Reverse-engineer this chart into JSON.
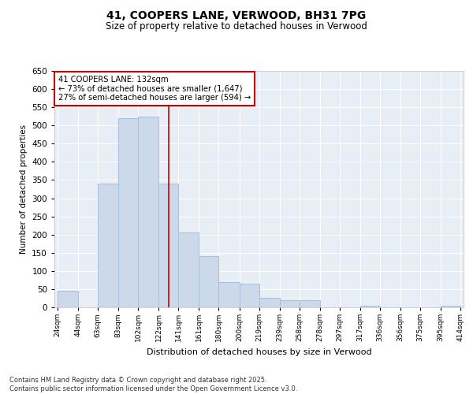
{
  "title_line1": "41, COOPERS LANE, VERWOOD, BH31 7PG",
  "title_line2": "Size of property relative to detached houses in Verwood",
  "xlabel": "Distribution of detached houses by size in Verwood",
  "ylabel": "Number of detached properties",
  "bar_color": "#ccd9ea",
  "bar_edge_color": "#a8c0d8",
  "background_color": "#e8eef5",
  "grid_color": "#ffffff",
  "bins_left": [
    24,
    44,
    63,
    83,
    102,
    122,
    141,
    161,
    180,
    200,
    219,
    239,
    258,
    278,
    297,
    317,
    336,
    356,
    375,
    395
  ],
  "bins_right": [
    44,
    63,
    83,
    102,
    122,
    141,
    161,
    180,
    200,
    219,
    239,
    258,
    278,
    297,
    317,
    336,
    356,
    375,
    395,
    414
  ],
  "values": [
    45,
    0,
    340,
    520,
    525,
    340,
    205,
    140,
    70,
    65,
    25,
    20,
    20,
    0,
    0,
    5,
    0,
    0,
    0,
    5
  ],
  "property_size": 132,
  "annotation_text": "41 COOPERS LANE: 132sqm\n← 73% of detached houses are smaller (1,647)\n27% of semi-detached houses are larger (594) →",
  "annotation_box_color": "#ffffff",
  "annotation_border_color": "#cc0000",
  "vline_color": "#cc0000",
  "ylim": [
    0,
    650
  ],
  "yticks": [
    0,
    50,
    100,
    150,
    200,
    250,
    300,
    350,
    400,
    450,
    500,
    550,
    600,
    650
  ],
  "all_ticks": [
    24,
    44,
    63,
    83,
    102,
    122,
    141,
    161,
    180,
    200,
    219,
    239,
    258,
    278,
    297,
    317,
    336,
    356,
    375,
    395,
    414
  ],
  "footer_line1": "Contains HM Land Registry data © Crown copyright and database right 2025.",
  "footer_line2": "Contains public sector information licensed under the Open Government Licence v3.0."
}
